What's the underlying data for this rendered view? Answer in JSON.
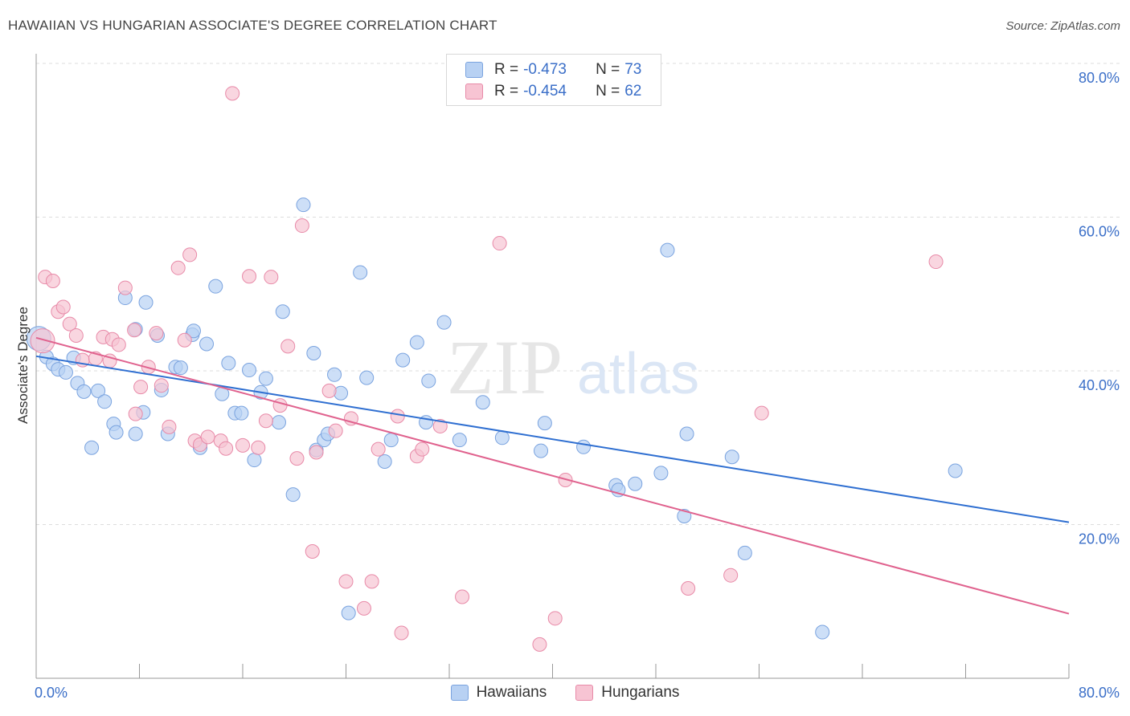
{
  "title": "HAWAIIAN VS HUNGARIAN ASSOCIATE'S DEGREE CORRELATION CHART",
  "source": "Source: ZipAtlas.com",
  "watermark": {
    "zip": "ZIP",
    "atlas": "atlas"
  },
  "legend": {
    "rows": [
      {
        "r_label": "R =",
        "r_value": "-0.473",
        "n_label": "N =",
        "n_value": "73"
      },
      {
        "r_label": "R =",
        "r_value": "-0.454",
        "n_label": "N =",
        "n_value": "62"
      }
    ]
  },
  "colors": {
    "hawaiians_fill": "#b8d1f3",
    "hawaiians_stroke": "#7aa3df",
    "hawaiians_line": "#2f6fd1",
    "hungarians_fill": "#f7c4d3",
    "hungarians_stroke": "#e88aa8",
    "hungarians_line": "#e0628e",
    "axis_text": "#3b6fc8",
    "grid": "#dddddd"
  },
  "chart_data": {
    "type": "scatter",
    "title": "HAWAIIAN VS HUNGARIAN ASSOCIATE'S DEGREE CORRELATION CHART",
    "xlabel": "",
    "ylabel": "Associate's Degree",
    "xlim": [
      0,
      80
    ],
    "ylim": [
      0,
      82
    ],
    "x_tick_labels": [
      "0.0%",
      "80.0%"
    ],
    "y_ticks": [
      20,
      40,
      60,
      80
    ],
    "y_tick_labels": [
      "20.0%",
      "40.0%",
      "60.0%",
      "80.0%"
    ],
    "grid": true,
    "legend_position": "top-center",
    "series": [
      {
        "name": "Hawaiians",
        "r": -0.473,
        "n": 73,
        "trend": {
          "x": [
            0,
            80
          ],
          "y": [
            41.9,
            20.3
          ]
        },
        "points": [
          [
            0.2,
            44.2
          ],
          [
            0.8,
            41.8
          ],
          [
            1.3,
            40.9
          ],
          [
            1.7,
            40.2
          ],
          [
            2.3,
            39.8
          ],
          [
            2.9,
            41.7
          ],
          [
            3.2,
            38.4
          ],
          [
            3.7,
            37.3
          ],
          [
            4.3,
            30.0
          ],
          [
            4.8,
            37.4
          ],
          [
            5.3,
            36.0
          ],
          [
            6.0,
            33.1
          ],
          [
            6.2,
            32.0
          ],
          [
            6.9,
            49.5
          ],
          [
            7.7,
            45.4
          ],
          [
            7.7,
            31.8
          ],
          [
            8.3,
            34.6
          ],
          [
            8.5,
            48.9
          ],
          [
            9.4,
            44.6
          ],
          [
            9.7,
            37.5
          ],
          [
            10.2,
            31.8
          ],
          [
            10.8,
            40.5
          ],
          [
            11.2,
            40.4
          ],
          [
            12.1,
            44.7
          ],
          [
            12.2,
            45.2
          ],
          [
            12.7,
            30.0
          ],
          [
            13.2,
            43.5
          ],
          [
            13.9,
            51.0
          ],
          [
            14.4,
            37.0
          ],
          [
            14.9,
            41.0
          ],
          [
            15.4,
            34.5
          ],
          [
            15.9,
            34.5
          ],
          [
            16.5,
            40.1
          ],
          [
            16.9,
            28.4
          ],
          [
            17.4,
            37.2
          ],
          [
            17.8,
            39.0
          ],
          [
            18.8,
            33.3
          ],
          [
            19.1,
            47.7
          ],
          [
            19.9,
            23.9
          ],
          [
            20.7,
            61.6
          ],
          [
            21.5,
            42.3
          ],
          [
            21.7,
            29.7
          ],
          [
            22.3,
            31.0
          ],
          [
            22.6,
            31.8
          ],
          [
            23.1,
            39.5
          ],
          [
            23.6,
            37.1
          ],
          [
            24.2,
            8.5
          ],
          [
            25.1,
            52.8
          ],
          [
            25.6,
            39.1
          ],
          [
            27.0,
            28.2
          ],
          [
            27.5,
            31.0
          ],
          [
            28.4,
            41.4
          ],
          [
            29.5,
            43.7
          ],
          [
            30.2,
            33.3
          ],
          [
            30.4,
            38.7
          ],
          [
            31.6,
            46.3
          ],
          [
            32.8,
            31.0
          ],
          [
            34.6,
            35.9
          ],
          [
            36.1,
            31.3
          ],
          [
            39.1,
            29.6
          ],
          [
            39.4,
            33.2
          ],
          [
            42.4,
            30.1
          ],
          [
            44.9,
            25.1
          ],
          [
            45.1,
            24.5
          ],
          [
            46.4,
            25.3
          ],
          [
            48.4,
            26.7
          ],
          [
            48.9,
            55.7
          ],
          [
            50.2,
            21.1
          ],
          [
            50.4,
            31.8
          ],
          [
            53.9,
            28.8
          ],
          [
            54.9,
            16.3
          ],
          [
            60.9,
            6.0
          ],
          [
            71.2,
            27.0
          ]
        ]
      },
      {
        "name": "Hungarians",
        "r": -0.454,
        "n": 62,
        "trend": {
          "x": [
            0,
            80
          ],
          "y": [
            44.3,
            8.4
          ]
        },
        "points": [
          [
            0.5,
            43.9
          ],
          [
            0.7,
            52.2
          ],
          [
            1.3,
            51.7
          ],
          [
            1.7,
            47.7
          ],
          [
            2.1,
            48.3
          ],
          [
            2.6,
            46.1
          ],
          [
            3.1,
            44.6
          ],
          [
            3.6,
            41.4
          ],
          [
            4.6,
            41.6
          ],
          [
            5.2,
            44.4
          ],
          [
            5.7,
            41.3
          ],
          [
            5.9,
            44.1
          ],
          [
            6.4,
            43.4
          ],
          [
            6.9,
            50.8
          ],
          [
            7.6,
            45.3
          ],
          [
            7.7,
            34.4
          ],
          [
            8.1,
            37.9
          ],
          [
            8.7,
            40.5
          ],
          [
            9.3,
            44.9
          ],
          [
            9.7,
            38.1
          ],
          [
            10.3,
            32.7
          ],
          [
            11.0,
            53.4
          ],
          [
            11.5,
            44.0
          ],
          [
            11.9,
            55.1
          ],
          [
            12.3,
            30.9
          ],
          [
            12.7,
            30.4
          ],
          [
            13.3,
            31.4
          ],
          [
            14.3,
            30.9
          ],
          [
            14.7,
            29.9
          ],
          [
            15.2,
            76.1
          ],
          [
            16.0,
            30.3
          ],
          [
            16.5,
            52.3
          ],
          [
            17.2,
            30.0
          ],
          [
            17.8,
            33.5
          ],
          [
            18.2,
            52.2
          ],
          [
            18.9,
            35.5
          ],
          [
            19.5,
            43.2
          ],
          [
            20.2,
            28.6
          ],
          [
            20.6,
            58.9
          ],
          [
            21.4,
            16.5
          ],
          [
            21.7,
            29.4
          ],
          [
            22.7,
            37.4
          ],
          [
            23.2,
            32.2
          ],
          [
            24.0,
            12.6
          ],
          [
            24.4,
            33.8
          ],
          [
            25.4,
            9.1
          ],
          [
            26.0,
            12.6
          ],
          [
            26.5,
            29.8
          ],
          [
            28.0,
            34.1
          ],
          [
            28.3,
            5.9
          ],
          [
            29.5,
            28.9
          ],
          [
            29.9,
            29.8
          ],
          [
            31.3,
            32.8
          ],
          [
            33.0,
            10.6
          ],
          [
            35.9,
            56.6
          ],
          [
            39.0,
            4.4
          ],
          [
            40.2,
            7.8
          ],
          [
            41.0,
            25.8
          ],
          [
            50.5,
            11.7
          ],
          [
            53.8,
            13.4
          ],
          [
            56.2,
            34.5
          ],
          [
            69.7,
            54.2
          ]
        ]
      }
    ]
  },
  "bottom_legend": [
    "Hawaiians",
    "Hungarians"
  ]
}
